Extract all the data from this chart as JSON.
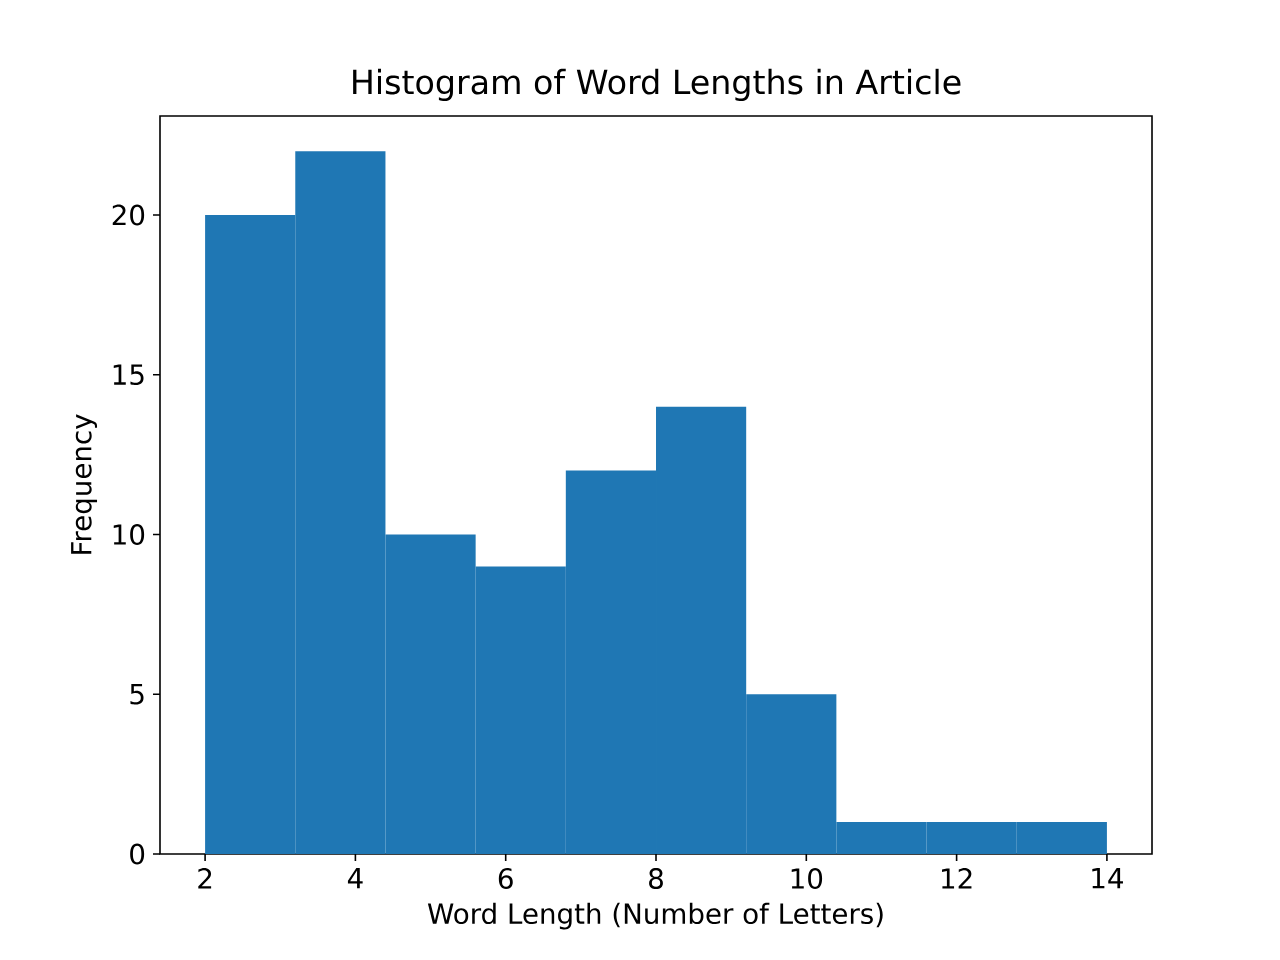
{
  "chart_data": {
    "type": "histogram",
    "title": "Histogram of Word Lengths in Article",
    "xlabel": "Word Length (Number of Letters)",
    "ylabel": "Frequency",
    "bins": [
      2,
      3.2,
      4.4,
      5.6,
      6.8,
      8,
      9.2,
      10.4,
      11.6,
      12.8,
      14
    ],
    "values": [
      20,
      22,
      10,
      9,
      12,
      14,
      5,
      1,
      1,
      1
    ],
    "color": "#1f77b4",
    "xlim": [
      1.4,
      14.6
    ],
    "ylim": [
      0,
      23.1
    ],
    "xticks": [
      2,
      4,
      6,
      8,
      10,
      12,
      14
    ],
    "yticks": [
      0,
      5,
      10,
      15,
      20
    ]
  }
}
